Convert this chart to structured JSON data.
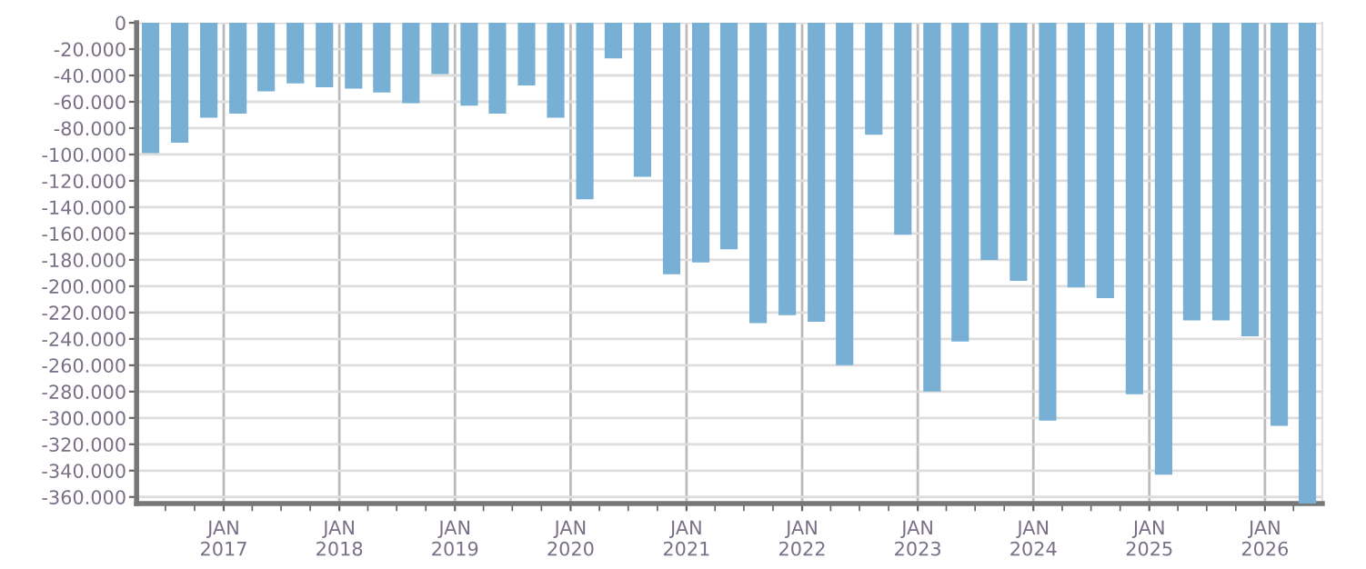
{
  "chart_data": {
    "type": "bar",
    "x": [
      "2016-05-15",
      "2016-08-15",
      "2016-11-15",
      "2017-02-15",
      "2017-05-15",
      "2017-08-15",
      "2017-11-15",
      "2018-02-15",
      "2018-05-15",
      "2018-08-15",
      "2018-11-15",
      "2019-02-15",
      "2019-05-15",
      "2019-08-15",
      "2019-11-15",
      "2020-02-15",
      "2020-05-15",
      "2020-08-15",
      "2020-11-15",
      "2021-02-15",
      "2021-05-15",
      "2021-08-15",
      "2021-11-15",
      "2022-02-15",
      "2022-05-15",
      "2022-08-15",
      "2022-11-15",
      "2023-02-15",
      "2023-05-15",
      "2023-08-15",
      "2023-11-15",
      "2024-02-15",
      "2024-05-15",
      "2024-08-15",
      "2024-11-15",
      "2025-02-15",
      "2025-05-15",
      "2025-08-15",
      "2025-11-15",
      "2026-02-15",
      "2026-05-15"
    ],
    "values": [
      -99000,
      -91000,
      -72000,
      -69000,
      -52000,
      -46000,
      -49000,
      -50000,
      -53000,
      -61000,
      -39000,
      -63000,
      -69000,
      -47500,
      -72000,
      -134000,
      -27000,
      -117000,
      -191000,
      -182000,
      -172000,
      -228000,
      -222000,
      -227000,
      -260000,
      -85000,
      -161000,
      -280000,
      -242000,
      -180000,
      -196000,
      -302000,
      -201000,
      -209000,
      -282000,
      -343000,
      -226000,
      -226000,
      -238000,
      -306000,
      -365000
    ],
    "color": "#77b0d4",
    "xlim": [
      "2016-04-01",
      "2026-07-01"
    ],
    "xticks": [
      {
        "value": "2016-07-01",
        "label": null
      },
      {
        "value": "2016-10-01",
        "label": null
      },
      {
        "value": "2017-01-01",
        "label": "JAN\n2017"
      },
      {
        "value": "2017-04-01",
        "label": null
      },
      {
        "value": "2017-07-01",
        "label": null
      },
      {
        "value": "2017-10-01",
        "label": null
      },
      {
        "value": "2018-01-01",
        "label": "JAN\n2018"
      },
      {
        "value": "2018-04-01",
        "label": null
      },
      {
        "value": "2018-07-01",
        "label": null
      },
      {
        "value": "2018-10-01",
        "label": null
      },
      {
        "value": "2019-01-01",
        "label": "JAN\n2019"
      },
      {
        "value": "2019-04-01",
        "label": null
      },
      {
        "value": "2019-07-01",
        "label": null
      },
      {
        "value": "2019-10-01",
        "label": null
      },
      {
        "value": "2020-01-01",
        "label": "JAN\n2020"
      },
      {
        "value": "2020-04-01",
        "label": null
      },
      {
        "value": "2020-07-01",
        "label": null
      },
      {
        "value": "2020-10-01",
        "label": null
      },
      {
        "value": "2021-01-01",
        "label": "JAN\n2021"
      },
      {
        "value": "2021-04-01",
        "label": null
      },
      {
        "value": "2021-07-01",
        "label": null
      },
      {
        "value": "2021-10-01",
        "label": null
      },
      {
        "value": "2022-01-01",
        "label": "JAN\n2022"
      },
      {
        "value": "2022-04-01",
        "label": null
      },
      {
        "value": "2022-07-01",
        "label": null
      },
      {
        "value": "2022-10-01",
        "label": null
      },
      {
        "value": "2023-01-01",
        "label": "JAN\n2023"
      },
      {
        "value": "2023-04-01",
        "label": null
      },
      {
        "value": "2023-07-01",
        "label": null
      },
      {
        "value": "2023-10-01",
        "label": null
      },
      {
        "value": "2024-01-01",
        "label": "JAN\n2024"
      },
      {
        "value": "2024-04-01",
        "label": null
      },
      {
        "value": "2024-07-01",
        "label": null
      },
      {
        "value": "2024-10-01",
        "label": null
      },
      {
        "value": "2025-01-01",
        "label": "JAN\n2025"
      },
      {
        "value": "2025-04-01",
        "label": null
      },
      {
        "value": "2025-07-01",
        "label": null
      },
      {
        "value": "2025-10-01",
        "label": null
      },
      {
        "value": "2026-01-01",
        "label": "JAN\n2026"
      },
      {
        "value": "2026-04-01",
        "label": null
      }
    ],
    "ylim": [
      -365000,
      0
    ],
    "yticks": [
      {
        "value": 0,
        "label": "0"
      },
      {
        "value": -20000,
        "label": "-20.000"
      },
      {
        "value": -40000,
        "label": "-40.000"
      },
      {
        "value": -60000,
        "label": "-60.000"
      },
      {
        "value": -80000,
        "label": "-80.000"
      },
      {
        "value": -100000,
        "label": "-100.000"
      },
      {
        "value": -120000,
        "label": "-120.000"
      },
      {
        "value": -140000,
        "label": "-140.000"
      },
      {
        "value": -160000,
        "label": "-160.000"
      },
      {
        "value": -180000,
        "label": "-180.000"
      },
      {
        "value": -200000,
        "label": "-200.000"
      },
      {
        "value": -220000,
        "label": "-220.000"
      },
      {
        "value": -240000,
        "label": "-240.000"
      },
      {
        "value": -260000,
        "label": "-260.000"
      },
      {
        "value": -280000,
        "label": "-280.000"
      },
      {
        "value": -300000,
        "label": "-300.000"
      },
      {
        "value": -320000,
        "label": "-320.000"
      },
      {
        "value": -340000,
        "label": "-340.000"
      },
      {
        "value": -360000,
        "label": "-360.000"
      }
    ],
    "grid": true,
    "legend": false
  }
}
